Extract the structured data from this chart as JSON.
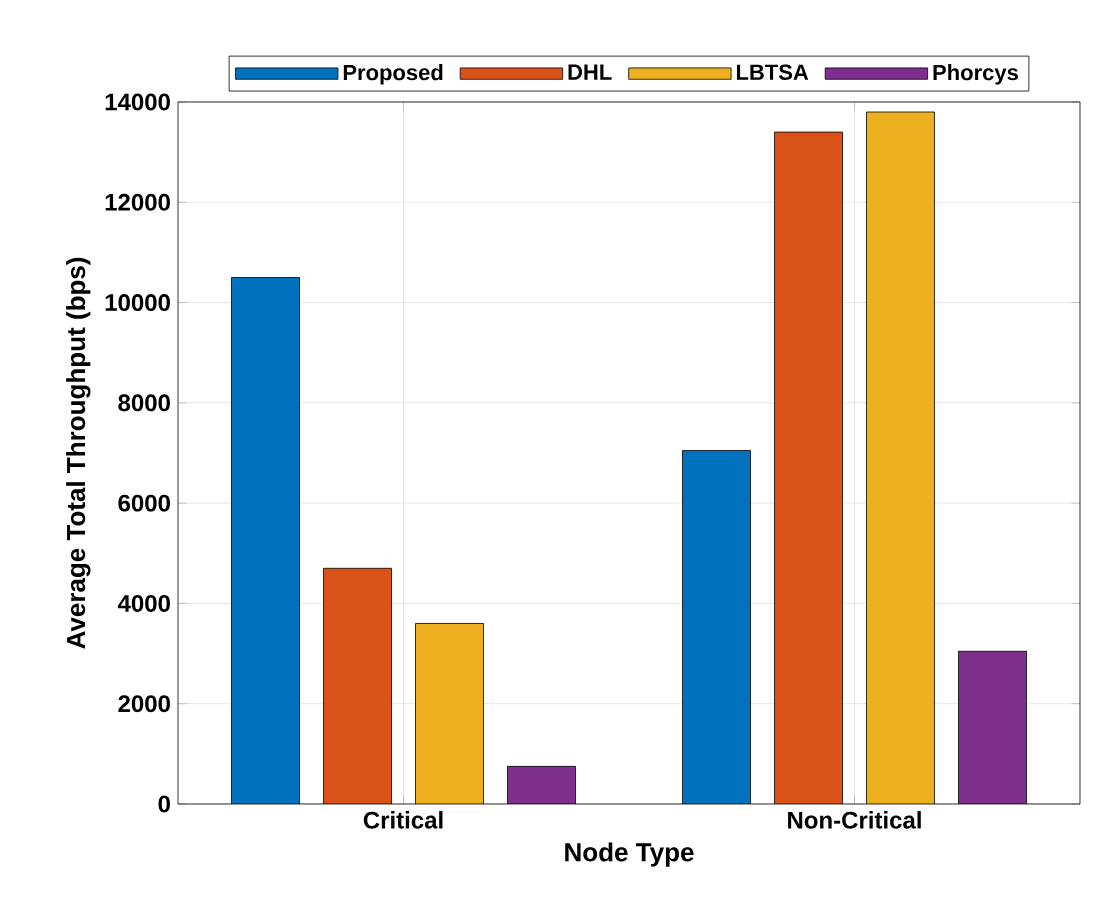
{
  "chart_data": {
    "type": "bar",
    "xlabel": "Node Type",
    "ylabel": "Average Total Throughput (bps)",
    "categories": [
      "Critical",
      "Non-Critical"
    ],
    "series": [
      {
        "name": "Proposed",
        "color": "#0072bd",
        "values": [
          10500,
          7050
        ]
      },
      {
        "name": "DHL",
        "color": "#d95319",
        "values": [
          4700,
          13400
        ]
      },
      {
        "name": "LBTSA",
        "color": "#edb120",
        "values": [
          3600,
          13800
        ]
      },
      {
        "name": "Phorcys",
        "color": "#7e2f8e",
        "values": [
          750,
          3050
        ]
      }
    ],
    "ylim": [
      0,
      14000
    ],
    "yticks": [
      0,
      2000,
      4000,
      6000,
      8000,
      10000,
      12000,
      14000
    ],
    "grid": true,
    "legend": "top"
  }
}
